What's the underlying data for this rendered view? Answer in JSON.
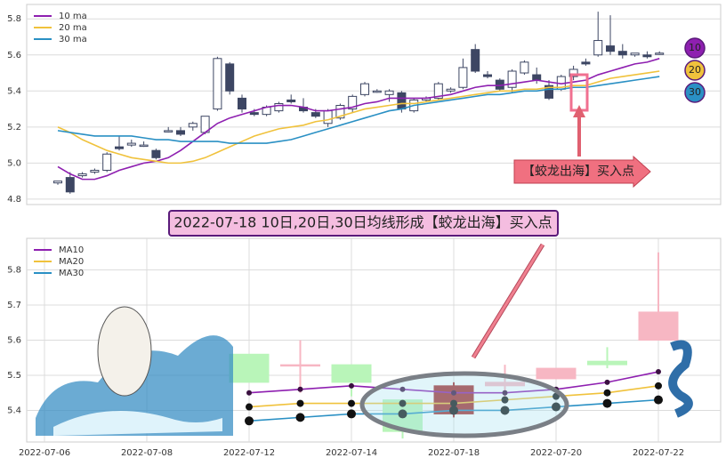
{
  "chart_data": [
    {
      "type": "candlestick",
      "open": [
        4.89,
        4.92,
        4.93,
        4.95,
        4.96,
        5.09,
        5.1,
        5.1,
        5.07,
        5.18,
        5.18,
        5.2,
        5.17,
        5.3,
        5.55,
        5.36,
        5.28,
        5.27,
        5.29,
        5.35,
        5.31,
        5.28,
        5.22,
        5.25,
        5.3,
        5.38,
        5.4,
        5.38,
        5.39,
        5.29,
        5.35,
        5.36,
        5.4,
        5.42,
        5.63,
        5.49,
        5.46,
        5.42,
        5.5,
        5.49,
        5.43,
        5.41,
        5.48,
        5.56,
        5.6,
        5.65,
        5.62,
        5.6,
        5.6,
        5.61
      ],
      "high": [
        4.9,
        4.95,
        4.95,
        4.97,
        5.06,
        5.15,
        5.13,
        5.12,
        5.08,
        5.2,
        5.2,
        5.23,
        5.26,
        5.59,
        5.56,
        5.38,
        5.3,
        5.32,
        5.34,
        5.38,
        5.36,
        5.3,
        5.3,
        5.33,
        5.38,
        5.45,
        5.41,
        5.41,
        5.4,
        5.36,
        5.37,
        5.45,
        5.42,
        5.58,
        5.66,
        5.51,
        5.47,
        5.52,
        5.57,
        5.53,
        5.46,
        5.49,
        5.54,
        5.58,
        5.84,
        5.82,
        5.66,
        5.61,
        5.62,
        5.62
      ],
      "low": [
        4.88,
        4.83,
        4.92,
        4.94,
        4.95,
        5.07,
        5.09,
        5.09,
        5.02,
        5.17,
        5.15,
        5.18,
        5.16,
        5.29,
        5.38,
        5.28,
        5.26,
        5.26,
        5.28,
        5.33,
        5.28,
        5.25,
        5.2,
        5.24,
        5.28,
        5.37,
        5.39,
        5.34,
        5.28,
        5.28,
        5.34,
        5.35,
        5.39,
        5.41,
        5.5,
        5.47,
        5.4,
        5.39,
        5.49,
        5.44,
        5.35,
        5.4,
        5.46,
        5.54,
        5.59,
        5.6,
        5.58,
        5.59,
        5.58,
        5.6
      ],
      "close": [
        4.9,
        4.84,
        4.94,
        4.96,
        5.05,
        5.08,
        5.11,
        5.1,
        5.03,
        5.18,
        5.16,
        5.22,
        5.26,
        5.58,
        5.4,
        5.3,
        5.27,
        5.31,
        5.33,
        5.34,
        5.29,
        5.26,
        5.29,
        5.32,
        5.37,
        5.44,
        5.4,
        5.4,
        5.3,
        5.35,
        5.36,
        5.44,
        5.41,
        5.53,
        5.51,
        5.48,
        5.41,
        5.51,
        5.56,
        5.46,
        5.36,
        5.48,
        5.52,
        5.55,
        5.68,
        5.62,
        5.6,
        5.61,
        5.59,
        5.61
      ],
      "up_color": "#ffffff",
      "down_color": "#3d4663",
      "series": [
        {
          "name": "10 ma",
          "color": "#8e1fb0",
          "values": [
            4.98,
            4.94,
            4.91,
            4.91,
            4.93,
            4.96,
            4.98,
            5.0,
            5.01,
            5.03,
            5.07,
            5.12,
            5.17,
            5.22,
            5.25,
            5.27,
            5.29,
            5.31,
            5.32,
            5.32,
            5.31,
            5.29,
            5.29,
            5.3,
            5.31,
            5.33,
            5.34,
            5.36,
            5.36,
            5.36,
            5.36,
            5.37,
            5.38,
            5.4,
            5.42,
            5.43,
            5.43,
            5.44,
            5.45,
            5.46,
            5.45,
            5.44,
            5.45,
            5.46,
            5.49,
            5.51,
            5.53,
            5.55,
            5.56,
            5.58
          ]
        },
        {
          "name": "20 ma",
          "color": "#f0c23c",
          "values": [
            5.2,
            5.17,
            5.13,
            5.1,
            5.07,
            5.05,
            5.03,
            5.02,
            5.01,
            5.0,
            5.0,
            5.01,
            5.03,
            5.06,
            5.09,
            5.12,
            5.15,
            5.17,
            5.19,
            5.2,
            5.21,
            5.23,
            5.24,
            5.26,
            5.28,
            5.3,
            5.31,
            5.32,
            5.33,
            5.33,
            5.34,
            5.35,
            5.36,
            5.37,
            5.38,
            5.39,
            5.4,
            5.4,
            5.41,
            5.41,
            5.42,
            5.42,
            5.43,
            5.43,
            5.45,
            5.47,
            5.48,
            5.49,
            5.5,
            5.51
          ]
        },
        {
          "name": "30 ma",
          "color": "#2a90c4",
          "values": [
            5.18,
            5.17,
            5.16,
            5.15,
            5.15,
            5.15,
            5.15,
            5.14,
            5.13,
            5.13,
            5.12,
            5.12,
            5.12,
            5.12,
            5.11,
            5.11,
            5.11,
            5.11,
            5.12,
            5.13,
            5.15,
            5.17,
            5.19,
            5.21,
            5.23,
            5.25,
            5.27,
            5.29,
            5.3,
            5.32,
            5.33,
            5.34,
            5.35,
            5.36,
            5.37,
            5.38,
            5.38,
            5.39,
            5.4,
            5.4,
            5.41,
            5.41,
            5.42,
            5.42,
            5.43,
            5.44,
            5.45,
            5.46,
            5.47,
            5.48
          ]
        }
      ],
      "ylim": [
        4.77,
        5.88
      ],
      "yticks": [
        4.8,
        {
          "value": 5.0,
          "label": "5.0"
        },
        5.2,
        5.4,
        5.6,
        5.8
      ],
      "grid": true,
      "legend": "upper left",
      "badges": [
        "10",
        "20",
        "30"
      ],
      "annotation": "【蛟龙出海】买入点"
    },
    {
      "type": "candlestick",
      "categories": [
        "2022-07-06",
        null,
        "2022-07-08",
        null,
        "2022-07-12",
        null,
        "2022-07-14",
        null,
        "2022-07-18",
        null,
        "2022-07-20",
        null,
        "2022-07-22"
      ],
      "open": [
        null,
        null,
        null,
        null,
        5.56,
        5.53,
        5.53,
        5.43,
        5.39,
        5.47,
        5.49,
        5.53,
        5.6
      ],
      "high": [
        null,
        null,
        null,
        null,
        5.56,
        5.6,
        5.53,
        5.43,
        5.48,
        5.53,
        5.52,
        5.58,
        5.85
      ],
      "low": [
        null,
        null,
        null,
        null,
        5.48,
        5.45,
        5.44,
        5.32,
        5.38,
        5.42,
        5.49,
        5.52,
        5.6
      ],
      "close": [
        null,
        null,
        null,
        null,
        5.48,
        5.53,
        5.48,
        5.34,
        5.47,
        5.48,
        5.52,
        5.54,
        5.68
      ],
      "candle_colors": [
        null,
        null,
        null,
        null,
        "#b9f5b9",
        "#f7b7c3",
        "#b9f5b9",
        "#b9f5b9",
        "#a52a2a",
        "#f7b7c3",
        "#f7b7c3",
        "#b9f5b9",
        "#f7b7c3"
      ],
      "series": [
        {
          "name": "MA10",
          "color": "#8e1fb0",
          "values": [
            null,
            null,
            null,
            null,
            5.45,
            5.46,
            5.47,
            5.46,
            5.45,
            5.45,
            5.46,
            5.48,
            5.51
          ]
        },
        {
          "name": "MA20",
          "color": "#f0c23c",
          "values": [
            null,
            null,
            null,
            null,
            5.41,
            5.42,
            5.42,
            5.42,
            5.42,
            5.43,
            5.44,
            5.45,
            5.47
          ]
        },
        {
          "name": "MA30",
          "color": "#2a90c4",
          "values": [
            null,
            null,
            null,
            null,
            5.37,
            5.38,
            5.39,
            5.39,
            5.4,
            5.4,
            5.41,
            5.42,
            5.43
          ]
        }
      ],
      "ylim": [
        5.31,
        5.89
      ],
      "yticks": [
        5.4,
        5.5,
        5.6,
        5.7,
        5.8
      ],
      "grid": true,
      "legend": "upper left",
      "annotation": "2022-07-18 10日,20日,30日均线形成【蛟龙出海】买入点"
    }
  ]
}
